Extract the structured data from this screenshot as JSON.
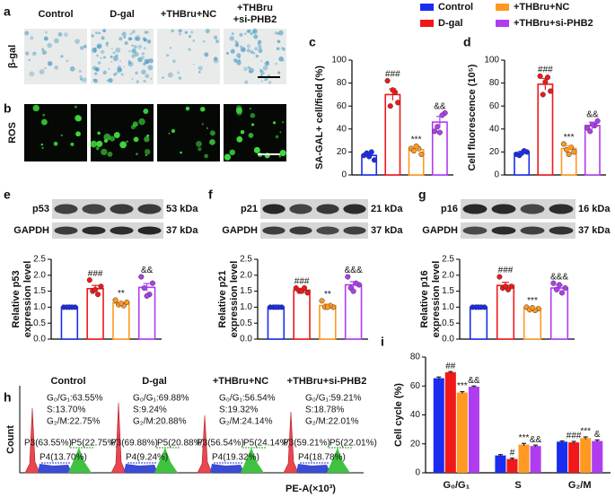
{
  "legend": [
    {
      "name": "Control",
      "color": "#1a2cf0"
    },
    {
      "name": "D-gal",
      "color": "#f01818"
    },
    {
      "name": "+THBru+NC",
      "color": "#ff9922"
    },
    {
      "name": "+THBru+si-PHB2",
      "color": "#b03cf0"
    }
  ],
  "images": {
    "labels": [
      "a",
      "b"
    ],
    "columns": [
      [
        "Control"
      ],
      [
        "D-gal"
      ],
      [
        "+THBru+NC"
      ],
      [
        "+THBru",
        "+si-PHB2"
      ]
    ],
    "rows": [
      "β-gal",
      "ROS"
    ]
  },
  "chart_data": [
    {
      "type": "bar",
      "label": "c",
      "ylabel": [
        "SA-GAL+ cell/field (%)"
      ],
      "categories": [
        null,
        null,
        null,
        null
      ],
      "colors": [
        "#1a2cf0",
        "#f01818",
        "#ff9922",
        "#b03cf0"
      ],
      "values": [
        17,
        70,
        22,
        46
      ],
      "errors": [
        2,
        5,
        2,
        5
      ],
      "points": [
        [
          17,
          13,
          19,
          20,
          16
        ],
        [
          82,
          63,
          60,
          72,
          74
        ],
        [
          23,
          18,
          21,
          23,
          25
        ],
        [
          38,
          54,
          42,
          52,
          37
        ]
      ],
      "annotations": [
        null,
        "###",
        "***",
        "&&"
      ],
      "ylim": [
        0,
        100
      ],
      "yticks": [
        0,
        20,
        40,
        60,
        80,
        100
      ]
    },
    {
      "type": "bar",
      "label": "d",
      "ylabel": [
        "Cell fluorescence (10⁵)"
      ],
      "categories": [
        null,
        null,
        null,
        null
      ],
      "colors": [
        "#1a2cf0",
        "#f01818",
        "#ff9922",
        "#b03cf0"
      ],
      "values": [
        19,
        79,
        23,
        43
      ],
      "errors": [
        1.5,
        5,
        2.5,
        3
      ],
      "points": [
        [
          18,
          20,
          17,
          21,
          19
        ],
        [
          86,
          73,
          70,
          85,
          81
        ],
        [
          27,
          20,
          22,
          24,
          18
        ],
        [
          41,
          47,
          38,
          43,
          44
        ]
      ],
      "annotations": [
        null,
        "###",
        "***",
        "&&"
      ],
      "ylim": [
        0,
        100
      ],
      "yticks": [
        0,
        20,
        40,
        60,
        80,
        100
      ]
    },
    {
      "type": "bar",
      "label": "e",
      "ylabel": [
        "Relative p53",
        "expression level"
      ],
      "blot": {
        "protein": "p53",
        "protein_size": "53 kDa",
        "loading": "GAPDH",
        "loading_size": "37 kDa"
      },
      "categories": [
        null,
        null,
        null,
        null
      ],
      "colors": [
        "#1a2cf0",
        "#f01818",
        "#ff9922",
        "#b03cf0"
      ],
      "values": [
        1.0,
        1.58,
        1.13,
        1.62
      ],
      "errors": [
        0.01,
        0.1,
        0.04,
        0.12
      ],
      "points": [
        [
          1,
          1,
          1,
          1,
          1
        ],
        [
          1.85,
          1.65,
          1.5,
          1.4,
          1.55
        ],
        [
          1.22,
          1.15,
          1.08,
          1.05,
          1.12
        ],
        [
          1.95,
          1.75,
          1.6,
          1.4,
          1.35
        ]
      ],
      "annotations": [
        null,
        "###",
        "**",
        "&&"
      ],
      "ylim": [
        0,
        2.5
      ],
      "yticks": [
        {
          "value": 0,
          "label": "0.0"
        },
        0.5,
        {
          "value": 1,
          "label": "1.0"
        },
        1.5,
        {
          "value": 2,
          "label": "2.0"
        },
        2.5
      ]
    },
    {
      "type": "bar",
      "label": "f",
      "ylabel": [
        "Relative p21",
        "expression level"
      ],
      "blot": {
        "protein": "p21",
        "protein_size": "21 kDa",
        "loading": "GAPDH",
        "loading_size": "37 kDa"
      },
      "categories": [
        null,
        null,
        null,
        null
      ],
      "colors": [
        "#1a2cf0",
        "#f01818",
        "#ff9922",
        "#b03cf0"
      ],
      "values": [
        1.0,
        1.53,
        1.05,
        1.7
      ],
      "errors": [
        0.01,
        0.06,
        0.05,
        0.1
      ],
      "points": [
        [
          1,
          1,
          1,
          1,
          1
        ],
        [
          1.6,
          1.45,
          1.5,
          1.6,
          1.5
        ],
        [
          1.2,
          1.0,
          1.0,
          1.05,
          1.0
        ],
        [
          1.95,
          1.7,
          1.6,
          1.75,
          1.5
        ]
      ],
      "annotations": [
        null,
        "###",
        "**",
        "&&&"
      ],
      "ylim": [
        0,
        2.5
      ],
      "yticks": [
        {
          "value": 0,
          "label": "0.0"
        },
        0.5,
        {
          "value": 1,
          "label": "1.0"
        },
        1.5,
        {
          "value": 2,
          "label": "2.0"
        },
        2.5
      ]
    },
    {
      "type": "bar",
      "label": "g",
      "ylabel": [
        "Relative p16",
        "expression level"
      ],
      "blot": {
        "protein": "p16",
        "protein_size": "16 kDa",
        "loading": "GAPDH",
        "loading_size": "37 kDa"
      },
      "categories": [
        null,
        null,
        null,
        null
      ],
      "colors": [
        "#1a2cf0",
        "#f01818",
        "#ff9922",
        "#b03cf0"
      ],
      "values": [
        1.0,
        1.68,
        0.95,
        1.6
      ],
      "errors": [
        0.01,
        0.1,
        0.03,
        0.08
      ],
      "points": [
        [
          1,
          1,
          1,
          1,
          1
        ],
        [
          1.95,
          1.65,
          1.6,
          1.55,
          1.65
        ],
        [
          1.0,
          0.95,
          0.92,
          0.9,
          0.98
        ],
        [
          1.75,
          1.6,
          1.55,
          1.45,
          1.7
        ]
      ],
      "annotations": [
        null,
        "###",
        "***",
        "&&&"
      ],
      "ylim": [
        0,
        2.5
      ],
      "yticks": [
        {
          "value": 0,
          "label": "0.0"
        },
        0.5,
        {
          "value": 1,
          "label": "1.0"
        },
        1.5,
        {
          "value": 2,
          "label": "2.0"
        },
        2.5
      ]
    },
    {
      "type": "flow",
      "label": "h",
      "ylabel": "Count",
      "xlabel": "PE-A(×10³)",
      "samples": [
        {
          "title": "Control",
          "stats": [
            "G₀/G₁:63.55%",
            "S:13.70%",
            "G₂/M:22.75%"
          ],
          "gates": [
            "P3(63.55%)",
            "P4(13.70%)",
            "P5(22.75%)"
          ]
        },
        {
          "title": "D-gal",
          "stats": [
            "G₀/G₁:69.88%",
            "S:9.24%",
            "G₂/M:20.88%"
          ],
          "gates": [
            "P3(69.88%)",
            "P4(9.24%)",
            "P5(20.88%)"
          ]
        },
        {
          "title": "+THBru+NC",
          "stats": [
            "G₀/G₁:56.54%",
            "S:19.32%",
            "G₂/M:24.14%"
          ],
          "gates": [
            "P3(56.54%)",
            "P4(19.32%)",
            "P5(24.14%)"
          ]
        },
        {
          "title": "+THBru+si-PHB2",
          "stats": [
            "G₀/G₁:59.21%",
            "S:18.78%",
            "G₂/M:22.01%"
          ],
          "gates": [
            "P3(59.21%)",
            "P4(18.78%)",
            "P5(22.01%)"
          ]
        }
      ]
    },
    {
      "type": "bar",
      "label": "i",
      "ylabel": [
        "Cell cycle (%)"
      ],
      "categories": [
        "G₀/G₁",
        "S",
        "G₂/M"
      ],
      "series": [
        {
          "name": "Control",
          "color": "#1a2cf0",
          "values": [
            65.4,
            12,
            21.5
          ],
          "errors": [
            0.8,
            0.6,
            0.5
          ],
          "annotations": [
            null,
            null,
            null
          ]
        },
        {
          "name": "D-gal",
          "color": "#f01818",
          "values": [
            69.5,
            9.5,
            21
          ],
          "errors": [
            0.5,
            0.6,
            0.7
          ],
          "annotations": [
            "##",
            "#",
            "###"
          ]
        },
        {
          "name": "+THBru+NC",
          "color": "#ff9922",
          "values": [
            55.5,
            19.5,
            24
          ],
          "errors": [
            0.6,
            0.8,
            0.8
          ],
          "annotations": [
            "***",
            "***",
            "***"
          ]
        },
        {
          "name": "+THBru+si-PHB2",
          "color": "#b03cf0",
          "values": [
            59.5,
            18.5,
            22
          ],
          "errors": [
            0.5,
            0.6,
            0.7
          ],
          "annotations": [
            "&&",
            "&&",
            "&"
          ]
        }
      ],
      "ylim": [
        0,
        80
      ],
      "yticks": [
        0,
        20,
        40,
        60,
        80
      ]
    }
  ]
}
